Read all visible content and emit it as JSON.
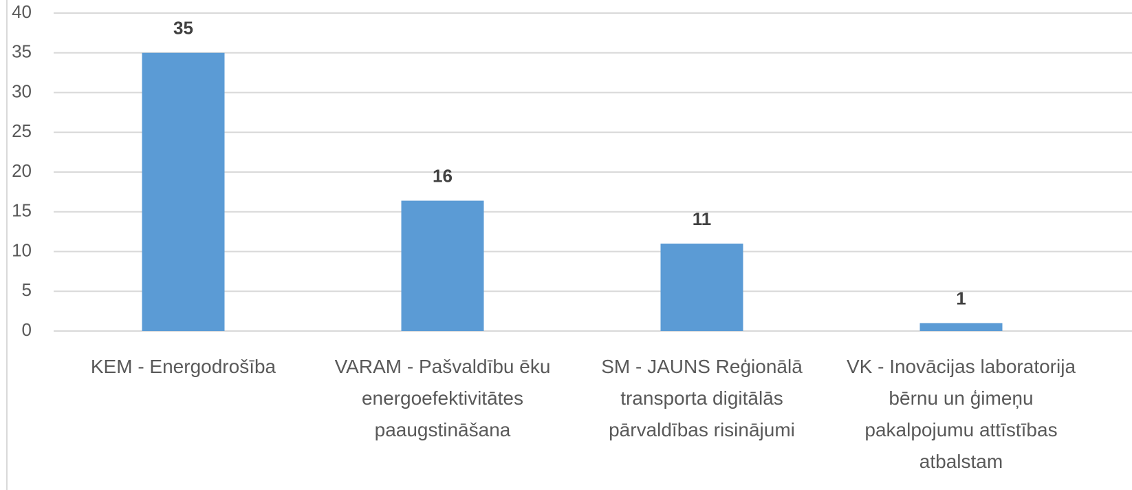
{
  "chart_data": {
    "type": "bar",
    "categories": [
      "KEM - Energodrošība",
      "VARAM - Pašvaldību ēku energoefektivitātes paaugstināšana",
      "SM - JAUNS Reģionālā transporta digitālās pārvaldības risinājumi",
      "VK - Inovācijas laboratorija bērnu un ģimeņu pakalpojumu attīstības atbalstam"
    ],
    "values": [
      35,
      16.4,
      11,
      1
    ],
    "value_labels": [
      "35",
      "16",
      "11",
      "1"
    ],
    "color": "#5b9bd5",
    "ylim": [
      0,
      40
    ],
    "yticks": [
      0,
      5,
      10,
      15,
      20,
      25,
      30,
      35,
      40
    ],
    "grid": true
  }
}
